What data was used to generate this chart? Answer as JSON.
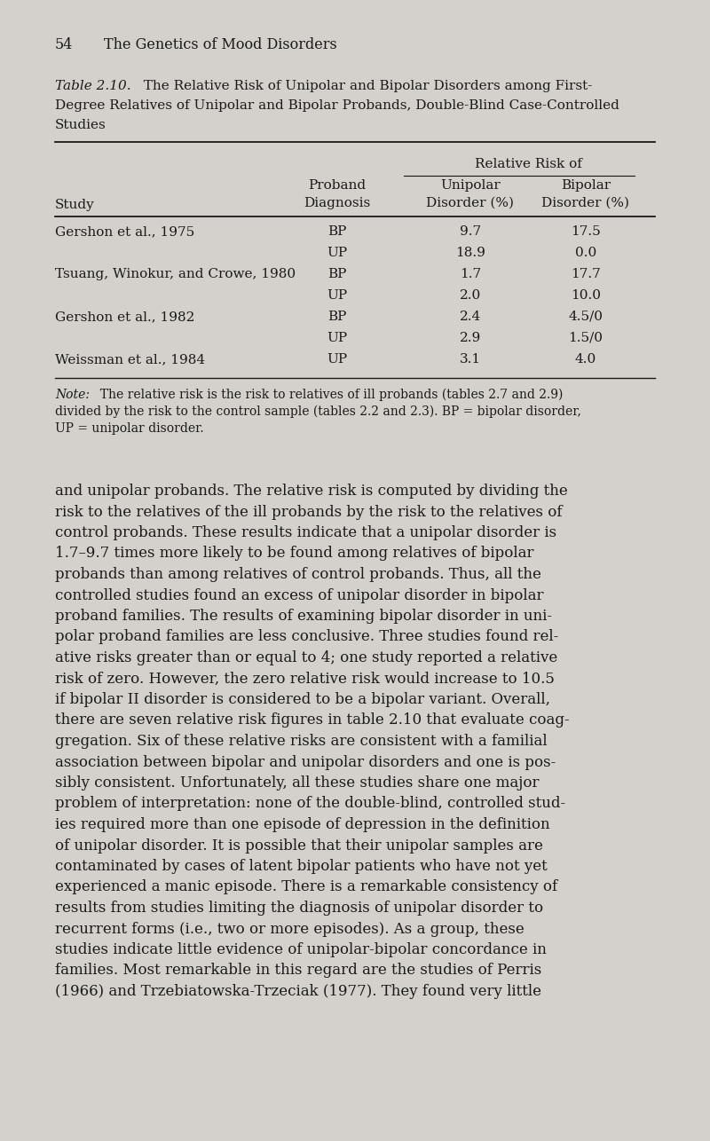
{
  "page_bg": "#d4d0cb",
  "text_color": "#1a1a1a",
  "rows": [
    [
      "Gershon et al., 1975",
      "BP",
      "9.7",
      "17.5"
    ],
    [
      "",
      "UP",
      "18.9",
      "0.0"
    ],
    [
      "Tsuang, Winokur, and Crowe, 1980",
      "BP",
      "1.7",
      "17.7"
    ],
    [
      "",
      "UP",
      "2.0",
      "10.0"
    ],
    [
      "Gershon et al., 1982",
      "BP",
      "2.4",
      "4.5/0"
    ],
    [
      "",
      "UP",
      "2.9",
      "1.5/0"
    ],
    [
      "Weissman et al., 1984",
      "UP",
      "3.1",
      "4.0"
    ]
  ],
  "note_text": "Note:  The relative risk is the risk to relatives of ill probands (tables 2.7 and 2.9)\ndivided by the risk to the control sample (tables 2.2 and 2.3). BP = bipolar disorder,\nUP = unipolar disorder.",
  "body_text": "and unipolar probands. The relative risk is computed by dividing the\nrisk to the relatives of the ill probands by the risk to the relatives of\ncontrol probands. These results indicate that a unipolar disorder is\n1.7–9.7 times more likely to be found among relatives of bipolar\nprobands than among relatives of control probands. Thus, all the\ncontrolled studies found an excess of unipolar disorder in bipolar\nproband families. The results of examining bipolar disorder in uni-\npolar proband families are less conclusive. Three studies found rel-\native risks greater than or equal to 4; one study reported a relative\nrisk of zero. However, the zero relative risk would increase to 10.5\nif bipolar II disorder is considered to be a bipolar variant. Overall,\nthere are seven relative risk figures in table 2.10 that evaluate coag-\ngregation. Six of these relative risks are consistent with a familial\nassociation between bipolar and unipolar disorders and one is pos-\nsibly consistent. Unfortunately, all these studies share one major\nproblem of interpretation: none of the double-blind, controlled stud-\nies required more than one episode of depression in the definition\nof unipolar disorder. It is possible that their unipolar samples are\ncontaminated by cases of latent bipolar patients who have not yet\nexperienced a manic episode. There is a remarkable consistency of\nresults from studies limiting the diagnosis of unipolar disorder to\nrecurrent forms (i.e., two or more episodes). As a group, these\nstudies indicate little evidence of unipolar-bipolar concordance in\nfamilies. Most remarkable in this regard are the studies of Perris\n(1966) and Trzebiatowska-Trzeciak (1977). They found very little"
}
